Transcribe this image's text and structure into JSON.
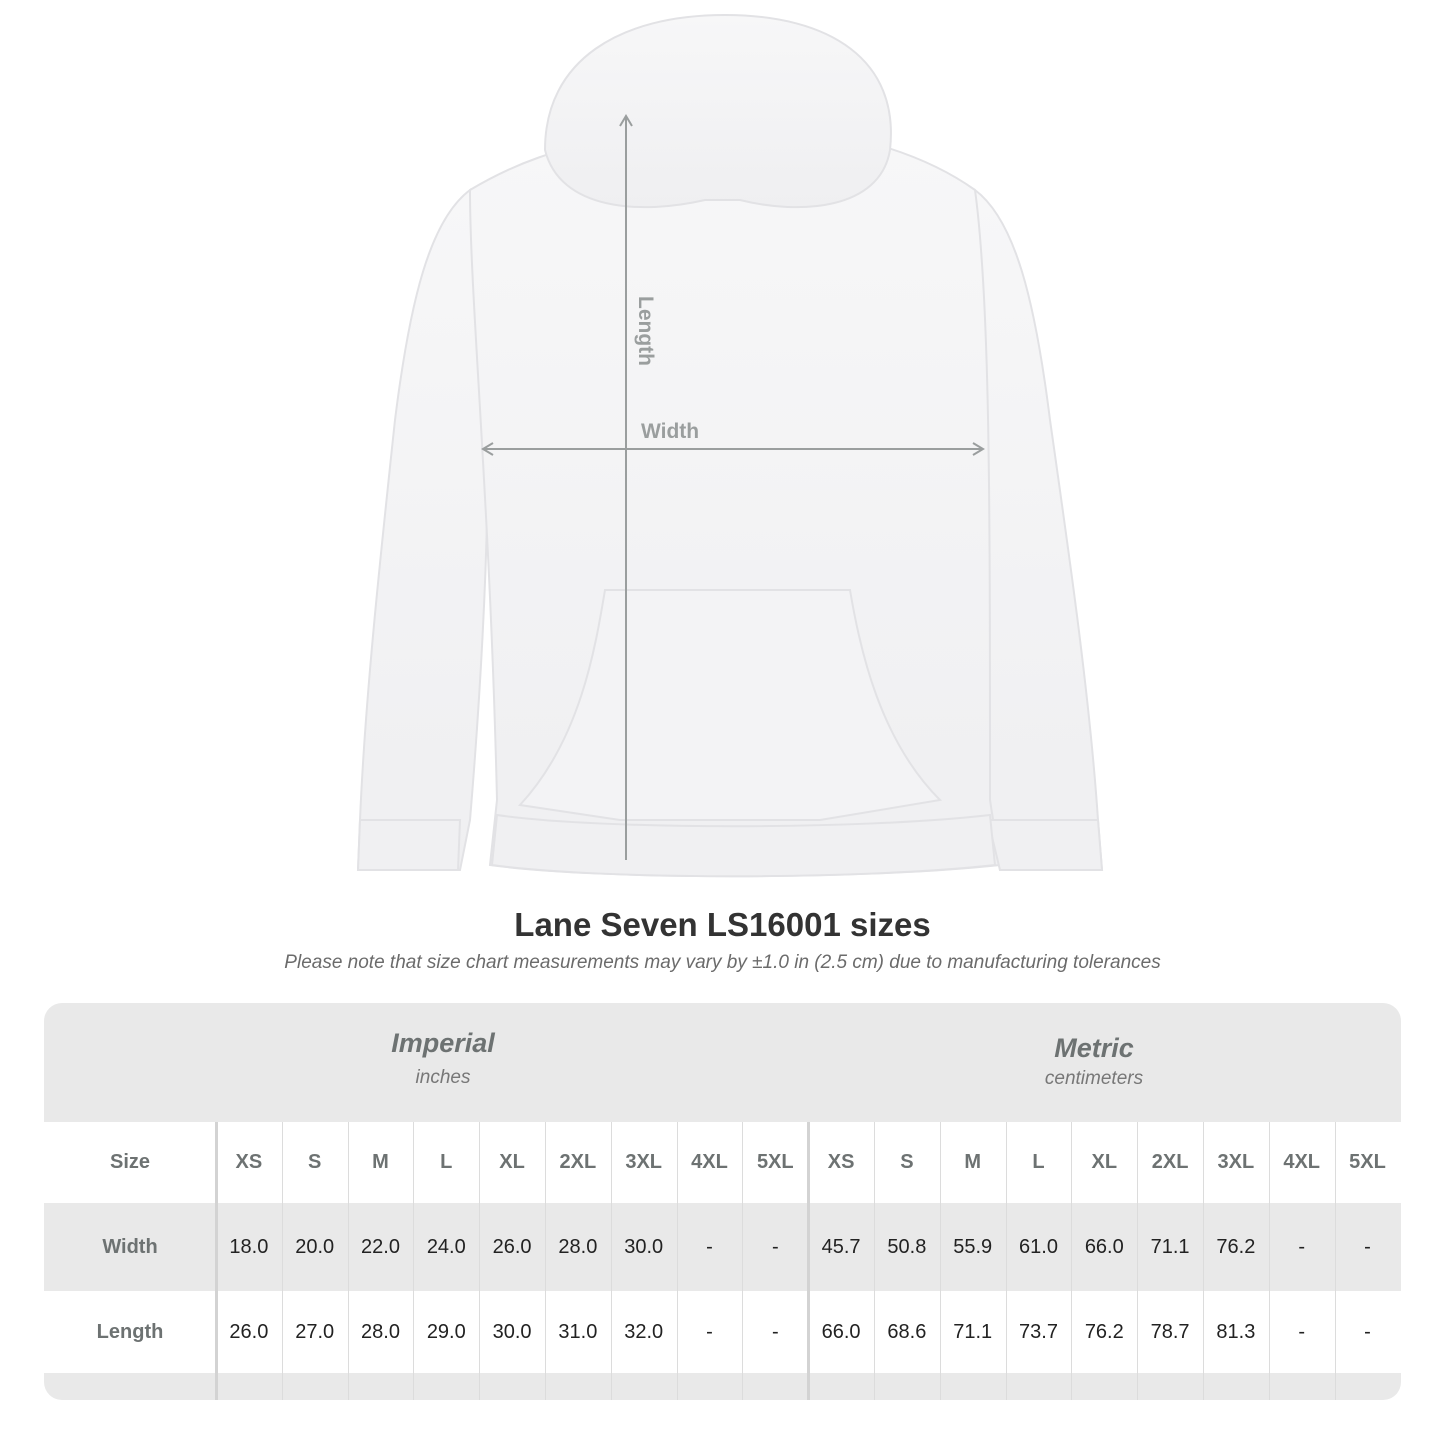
{
  "diagram": {
    "length_label": "Length",
    "width_label": "Width"
  },
  "title": "Lane Seven LS16001 sizes",
  "subtitle": "Please note that size chart measurements may vary by ±1.0 in (2.5 cm) due to manufacturing tolerances",
  "table": {
    "imperial": {
      "name": "Imperial",
      "unit": "inches"
    },
    "metric": {
      "name": "Metric",
      "unit": "centimeters"
    },
    "size_label": "Size",
    "sizes": [
      "XS",
      "S",
      "M",
      "L",
      "XL",
      "2XL",
      "3XL",
      "4XL",
      "5XL"
    ],
    "rows": [
      {
        "label": "Width",
        "imperial": [
          "18.0",
          "20.0",
          "22.0",
          "24.0",
          "26.0",
          "28.0",
          "30.0",
          "-",
          "-"
        ],
        "metric": [
          "45.7",
          "50.8",
          "55.9",
          "61.0",
          "66.0",
          "71.1",
          "76.2",
          "-",
          "-"
        ]
      },
      {
        "label": "Length",
        "imperial": [
          "26.0",
          "27.0",
          "28.0",
          "29.0",
          "30.0",
          "31.0",
          "32.0",
          "-",
          "-"
        ],
        "metric": [
          "66.0",
          "68.6",
          "71.1",
          "73.7",
          "76.2",
          "78.7",
          "81.3",
          "-",
          "-"
        ]
      }
    ]
  },
  "colors": {
    "header_bg": "#e9e9e9",
    "header_text": "#6d7272",
    "arrow": "#9a9e9e"
  }
}
